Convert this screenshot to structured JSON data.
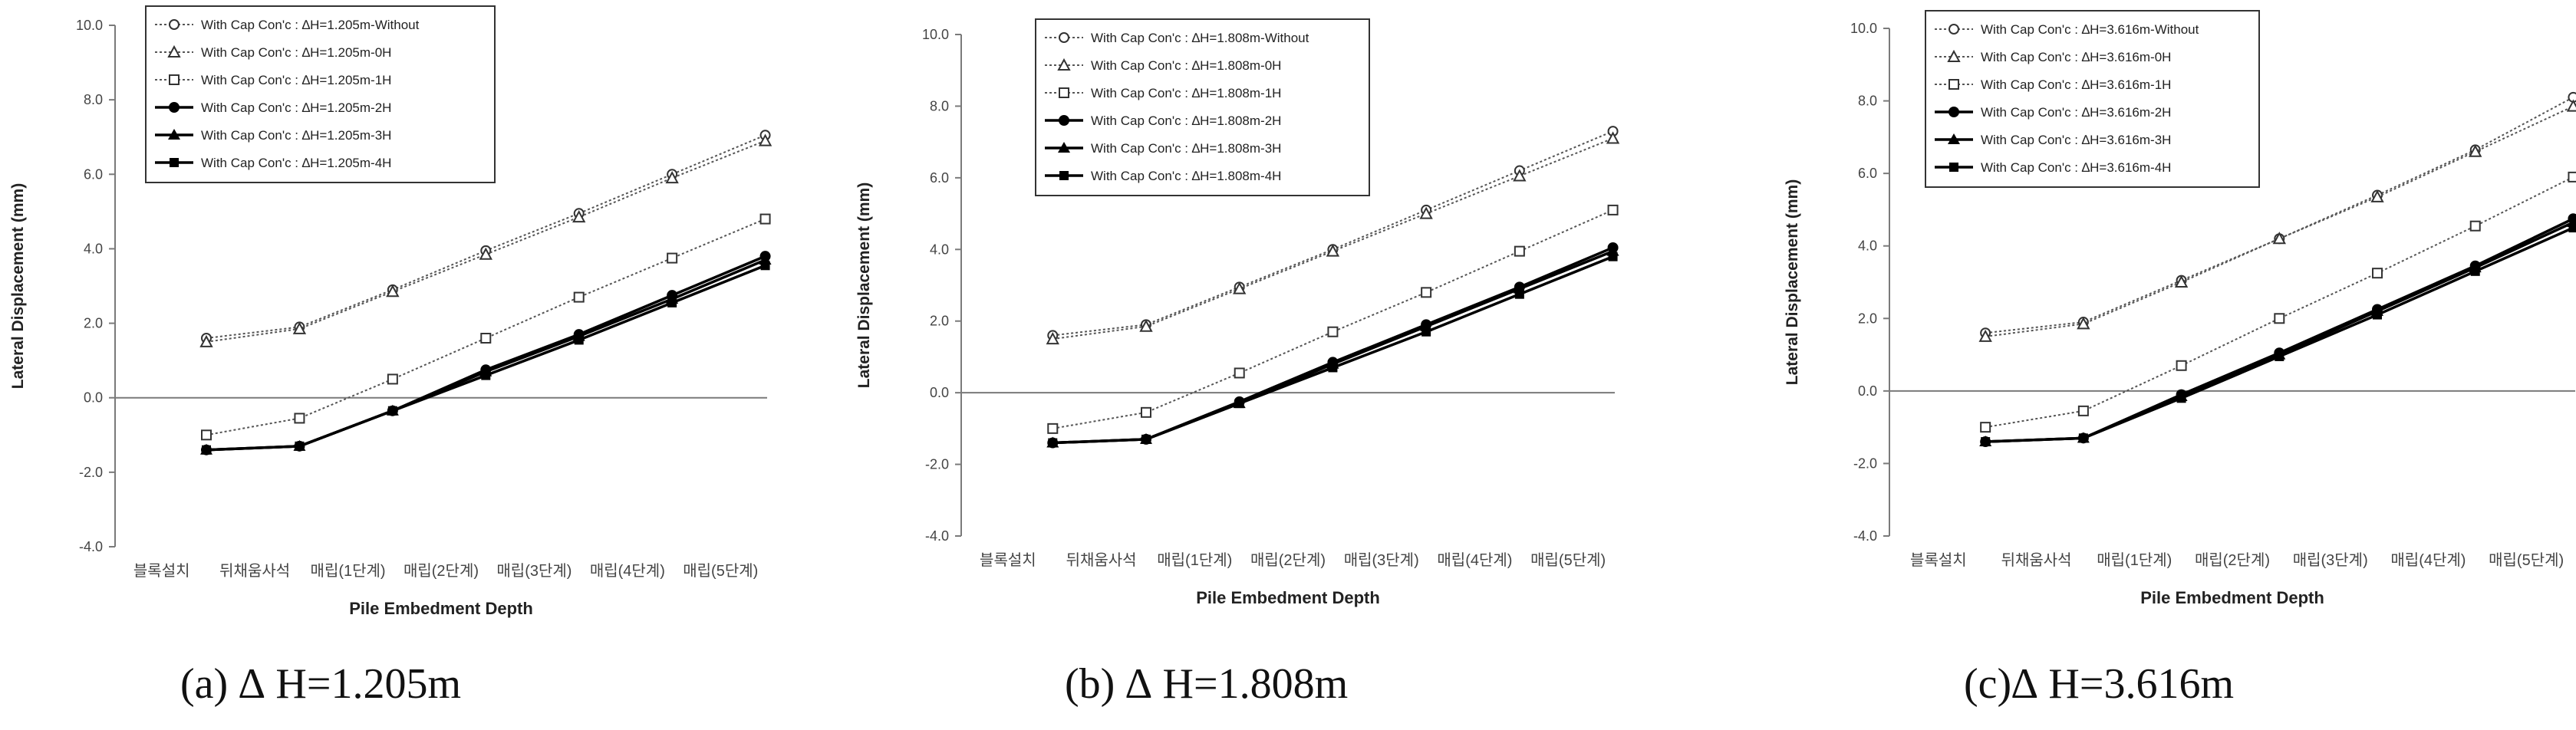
{
  "chart_data": [
    {
      "type": "line",
      "caption": "(a)  ∆ H=1.205m",
      "xlabel": "Pile Embedment Depth",
      "ylabel": "Lateral Displacement (mm)",
      "ylim": [
        -4.0,
        10.0
      ],
      "yticks": [
        "-4.0",
        "-2.0",
        "0.0",
        "2.0",
        "4.0",
        "6.0",
        "8.0",
        "10.0"
      ],
      "categories": [
        "블록설치",
        "뒤채움사석",
        "매립(1단계)",
        "매립(2단계)",
        "매립(3단계)",
        "매립(4단계)",
        "매립(5단계)"
      ],
      "legend_position": "top-left",
      "grid": false,
      "series": [
        {
          "name": "With Cap Con'c : ∆H=1.205m-Without",
          "marker": "circle",
          "style": "dotted",
          "values": [
            1.6,
            1.9,
            2.9,
            3.95,
            4.95,
            6.0,
            7.05
          ]
        },
        {
          "name": "With Cap Con'c : ∆H=1.205m-0H",
          "marker": "triangle",
          "style": "dotted",
          "values": [
            1.5,
            1.85,
            2.85,
            3.85,
            4.85,
            5.9,
            6.9
          ]
        },
        {
          "name": "With Cap Con'c : ∆H=1.205m-1H",
          "marker": "square-open",
          "style": "dotted",
          "values": [
            -1.0,
            -0.55,
            0.5,
            1.6,
            2.7,
            3.75,
            4.8
          ]
        },
        {
          "name": "With Cap Con'c : ∆H=1.205m-2H",
          "marker": "diamond",
          "style": "solid",
          "values": [
            -1.4,
            -1.3,
            -0.35,
            0.75,
            1.7,
            2.75,
            3.8
          ]
        },
        {
          "name": "With Cap Con'c : ∆H=1.205m-3H",
          "marker": "triangle-filled",
          "style": "solid",
          "values": [
            -1.4,
            -1.3,
            -0.35,
            0.7,
            1.65,
            2.65,
            3.7
          ]
        },
        {
          "name": "With Cap Con'c : ∆H=1.205m-4H",
          "marker": "square",
          "style": "solid",
          "values": [
            -1.4,
            -1.3,
            -0.35,
            0.6,
            1.55,
            2.55,
            3.55
          ]
        }
      ]
    },
    {
      "type": "line",
      "caption": "(b)  ∆ H=1.808m",
      "xlabel": "Pile Embedment Depth",
      "ylabel": "Lateral Displacement (mm)",
      "ylim": [
        -4.0,
        10.0
      ],
      "yticks": [
        "-4.0",
        "-2.0",
        "0.0",
        "2.0",
        "4.0",
        "6.0",
        "8.0",
        "10.0"
      ],
      "categories": [
        "블록설치",
        "뒤채움사석",
        "매립(1단계)",
        "매립(2단계)",
        "매립(3단계)",
        "매립(4단계)",
        "매립(5단계)"
      ],
      "legend_position": "top-left",
      "grid": false,
      "series": [
        {
          "name": "With Cap Con'c : ∆H=1.808m-Without",
          "marker": "circle",
          "style": "dotted",
          "values": [
            1.6,
            1.9,
            2.95,
            4.0,
            5.1,
            6.2,
            7.3
          ]
        },
        {
          "name": "With Cap Con'c : ∆H=1.808m-0H",
          "marker": "triangle",
          "style": "dotted",
          "values": [
            1.5,
            1.85,
            2.9,
            3.95,
            5.0,
            6.05,
            7.1
          ]
        },
        {
          "name": "With Cap Con'c : ∆H=1.808m-1H",
          "marker": "square-open",
          "style": "dotted",
          "values": [
            -1.0,
            -0.55,
            0.55,
            1.7,
            2.8,
            3.95,
            5.1
          ]
        },
        {
          "name": "With Cap Con'c : ∆H=1.808m-2H",
          "marker": "diamond",
          "style": "solid",
          "values": [
            -1.4,
            -1.3,
            -0.25,
            0.85,
            1.9,
            2.95,
            4.05
          ]
        },
        {
          "name": "With Cap Con'c : ∆H=1.808m-3H",
          "marker": "triangle-filled",
          "style": "solid",
          "values": [
            -1.4,
            -1.3,
            -0.3,
            0.8,
            1.85,
            2.9,
            3.95
          ]
        },
        {
          "name": "With Cap Con'c : ∆H=1.808m-4H",
          "marker": "square",
          "style": "solid",
          "values": [
            -1.4,
            -1.3,
            -0.3,
            0.7,
            1.7,
            2.75,
            3.8
          ]
        }
      ]
    },
    {
      "type": "line",
      "caption": "(c)∆ H=3.616m",
      "xlabel": "Pile Embedment Depth",
      "ylabel": "Lateral Displacement (mm)",
      "ylim": [
        -4.0,
        10.0
      ],
      "yticks": [
        "-4.0",
        "-2.0",
        "0.0",
        "2.0",
        "4.0",
        "6.0",
        "8.0",
        "10.0"
      ],
      "categories": [
        "블록설치",
        "뒤채움사석",
        "매립(1단계)",
        "매립(2단계)",
        "매립(3단계)",
        "매립(4단계)",
        "매립(5단계)"
      ],
      "legend_position": "top-left",
      "grid": false,
      "series": [
        {
          "name": "With Cap Con'c : ∆H=3.616m-Without",
          "marker": "circle",
          "style": "dotted",
          "values": [
            1.6,
            1.9,
            3.05,
            4.2,
            5.4,
            6.65,
            8.1
          ]
        },
        {
          "name": "With Cap Con'c : ∆H=3.616m-0H",
          "marker": "triangle",
          "style": "dotted",
          "values": [
            1.5,
            1.85,
            3.0,
            4.2,
            5.35,
            6.6,
            7.85
          ]
        },
        {
          "name": "With Cap Con'c : ∆H=3.616m-1H",
          "marker": "square-open",
          "style": "dotted",
          "values": [
            -1.0,
            -0.55,
            0.7,
            2.0,
            3.25,
            4.55,
            5.9
          ]
        },
        {
          "name": "With Cap Con'c : ∆H=3.616m-2H",
          "marker": "diamond",
          "style": "solid",
          "values": [
            -1.4,
            -1.3,
            -0.1,
            1.05,
            2.25,
            3.45,
            4.75
          ]
        },
        {
          "name": "With Cap Con'c : ∆H=3.616m-3H",
          "marker": "triangle-filled",
          "style": "solid",
          "values": [
            -1.4,
            -1.3,
            -0.15,
            1.0,
            2.2,
            3.4,
            4.65
          ]
        },
        {
          "name": "With Cap Con'c : ∆H=3.616m-4H",
          "marker": "square",
          "style": "solid",
          "values": [
            -1.4,
            -1.3,
            -0.2,
            0.95,
            2.1,
            3.3,
            4.5
          ]
        }
      ]
    }
  ]
}
